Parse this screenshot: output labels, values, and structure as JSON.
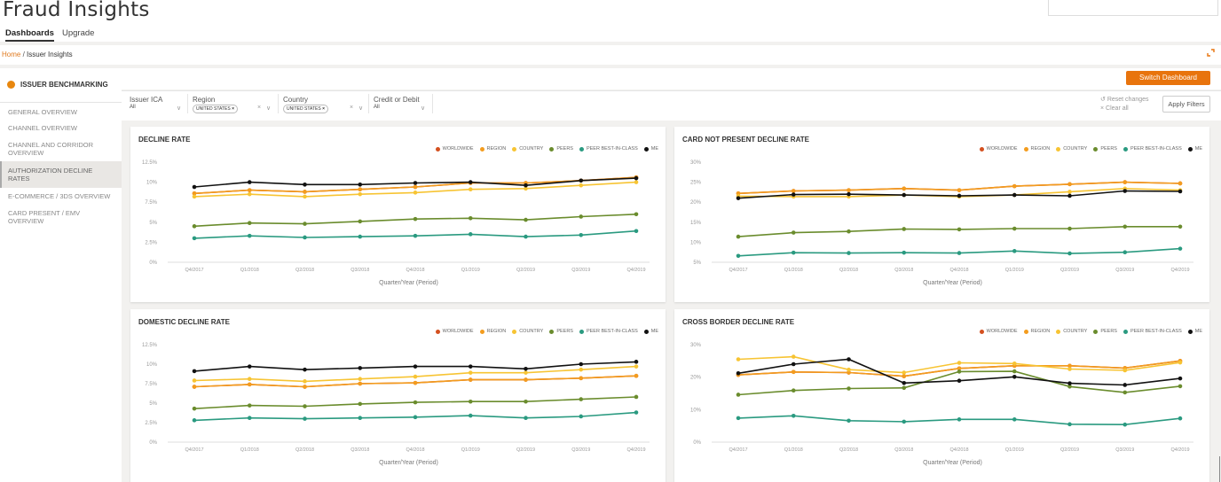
{
  "app": {
    "title": "Fraud Insights"
  },
  "nav": {
    "dashboards": "Dashboards",
    "upgrade": "Upgrade"
  },
  "breadcrumb": {
    "home": "Home",
    "sep": " / ",
    "current": "Issuer Insights"
  },
  "sidebar": {
    "header": "ISSUER BENCHMARKING",
    "items": [
      "GENERAL OVERVIEW",
      "CHANNEL OVERVIEW",
      "CHANNEL AND CORRIDOR OVERVIEW",
      "AUTHORIZATION DECLINE RATES",
      "E-COMMERCE / 3DS OVERVIEW",
      "CARD PRESENT / EMV OVERVIEW"
    ]
  },
  "toolbar": {
    "switch": "Switch Dashboard",
    "reset": "Reset changes",
    "clear": "Clear all",
    "apply": "Apply Filters"
  },
  "filters": {
    "issuer": {
      "label": "Issuer ICA",
      "value": "All"
    },
    "region": {
      "label": "Region",
      "chip": "UNITED STATES"
    },
    "country": {
      "label": "Country",
      "chip": "UNITED STATES"
    },
    "credit": {
      "label": "Credit or Debit",
      "value": "All"
    }
  },
  "colors": {
    "WORLDWIDE": "#d4501f",
    "REGION": "#f39c1e",
    "COUNTRY": "#f7c433",
    "PEERS": "#6a8c2d",
    "PEER BEST-IN-CLASS": "#2a9a80",
    "ME": "#111111",
    "accent": "#e8740d"
  },
  "chart_data": [
    {
      "type": "line",
      "title": "DECLINE RATE",
      "xlabel": "Quarter/Year (Period)",
      "x": [
        "Q4/2017",
        "Q1/2018",
        "Q2/2018",
        "Q3/2018",
        "Q4/2018",
        "Q1/2019",
        "Q2/2019",
        "Q3/2019",
        "Q4/2019"
      ],
      "yticks": [
        "0%",
        "2.5%",
        "5%",
        "7.5%",
        "10%",
        "12.5%"
      ],
      "ylim": [
        0,
        12.5
      ],
      "series": [
        {
          "name": "WORLDWIDE",
          "values": [
            8.6,
            9.0,
            8.8,
            9.1,
            9.4,
            9.9,
            9.9,
            10.2,
            10.6
          ]
        },
        {
          "name": "REGION",
          "values": [
            8.6,
            9.0,
            8.8,
            9.1,
            9.4,
            9.9,
            9.9,
            10.2,
            10.6
          ]
        },
        {
          "name": "COUNTRY",
          "values": [
            8.2,
            8.5,
            8.2,
            8.5,
            8.7,
            9.1,
            9.2,
            9.6,
            10.0
          ]
        },
        {
          "name": "PEERS",
          "values": [
            4.5,
            4.9,
            4.8,
            5.1,
            5.4,
            5.5,
            5.3,
            5.7,
            6.0
          ]
        },
        {
          "name": "PEER BEST-IN-CLASS",
          "values": [
            3.0,
            3.3,
            3.1,
            3.2,
            3.3,
            3.5,
            3.2,
            3.4,
            3.9
          ]
        },
        {
          "name": "ME",
          "values": [
            9.4,
            10.0,
            9.7,
            9.7,
            9.9,
            10.0,
            9.6,
            10.2,
            10.5
          ]
        }
      ]
    },
    {
      "type": "line",
      "title": "CARD NOT PRESENT DECLINE RATE",
      "xlabel": "Quarter/Year (Period)",
      "x": [
        "Q4/2017",
        "Q1/2018",
        "Q2/2018",
        "Q3/2018",
        "Q4/2018",
        "Q1/2019",
        "Q2/2019",
        "Q3/2019",
        "Q4/2019"
      ],
      "yticks": [
        "5%",
        "10%",
        "15%",
        "20%",
        "25%",
        "30%"
      ],
      "ylim": [
        5,
        30
      ],
      "series": [
        {
          "name": "WORLDWIDE",
          "values": [
            22.2,
            22.8,
            23.0,
            23.4,
            23.0,
            24.0,
            24.5,
            25.0,
            24.7
          ]
        },
        {
          "name": "REGION",
          "values": [
            22.2,
            22.8,
            23.0,
            23.4,
            23.0,
            24.0,
            24.5,
            25.0,
            24.7
          ]
        },
        {
          "name": "COUNTRY",
          "values": [
            21.5,
            21.4,
            21.4,
            21.8,
            21.4,
            21.8,
            22.6,
            23.4,
            23.0
          ]
        },
        {
          "name": "PEERS",
          "values": [
            11.4,
            12.4,
            12.7,
            13.3,
            13.2,
            13.4,
            13.4,
            13.9,
            13.9
          ]
        },
        {
          "name": "PEER BEST-IN-CLASS",
          "values": [
            6.6,
            7.4,
            7.3,
            7.4,
            7.3,
            7.8,
            7.2,
            7.5,
            8.4
          ]
        },
        {
          "name": "ME",
          "values": [
            21.0,
            21.9,
            22.0,
            21.8,
            21.6,
            21.8,
            21.6,
            22.8,
            22.7
          ]
        }
      ]
    },
    {
      "type": "line",
      "title": "DOMESTIC DECLINE RATE",
      "xlabel": "Quarter/Year (Period)",
      "x": [
        "Q4/2017",
        "Q1/2018",
        "Q2/2018",
        "Q3/2018",
        "Q4/2018",
        "Q1/2019",
        "Q2/2019",
        "Q3/2019",
        "Q4/2019"
      ],
      "yticks": [
        "0%",
        "2.5%",
        "5%",
        "7.5%",
        "10%",
        "12.5%"
      ],
      "ylim": [
        0,
        12.5
      ],
      "series": [
        {
          "name": "WORLDWIDE",
          "values": [
            7.1,
            7.4,
            7.1,
            7.5,
            7.6,
            8.0,
            8.0,
            8.2,
            8.5
          ]
        },
        {
          "name": "REGION",
          "values": [
            7.1,
            7.4,
            7.1,
            7.5,
            7.6,
            8.0,
            8.0,
            8.2,
            8.5
          ]
        },
        {
          "name": "COUNTRY",
          "values": [
            7.9,
            8.1,
            7.8,
            8.1,
            8.4,
            8.9,
            8.9,
            9.3,
            9.7
          ]
        },
        {
          "name": "PEERS",
          "values": [
            4.3,
            4.7,
            4.6,
            4.9,
            5.1,
            5.2,
            5.2,
            5.5,
            5.8
          ]
        },
        {
          "name": "PEER BEST-IN-CLASS",
          "values": [
            2.8,
            3.1,
            3.0,
            3.1,
            3.2,
            3.4,
            3.1,
            3.3,
            3.8
          ]
        },
        {
          "name": "ME",
          "values": [
            9.1,
            9.7,
            9.3,
            9.5,
            9.7,
            9.7,
            9.4,
            10.0,
            10.3
          ]
        }
      ]
    },
    {
      "type": "line",
      "title": "CROSS BORDER DECLINE RATE",
      "xlabel": "Quarter/Year (Period)",
      "x": [
        "Q4/2017",
        "Q1/2018",
        "Q2/2018",
        "Q3/2018",
        "Q4/2018",
        "Q1/2019",
        "Q2/2019",
        "Q3/2019",
        "Q4/2019"
      ],
      "yticks": [
        "0%",
        "10%",
        "20%",
        "30%"
      ],
      "ylim": [
        0,
        30
      ],
      "series": [
        {
          "name": "WORLDWIDE",
          "values": [
            20.7,
            21.6,
            21.4,
            20.3,
            22.7,
            23.5,
            23.5,
            22.8,
            25.0
          ]
        },
        {
          "name": "REGION",
          "values": [
            20.7,
            21.6,
            21.4,
            20.3,
            22.7,
            23.5,
            23.5,
            22.8,
            25.0
          ]
        },
        {
          "name": "COUNTRY",
          "values": [
            25.5,
            26.3,
            22.3,
            21.4,
            24.4,
            24.2,
            22.5,
            22.1,
            24.5
          ]
        },
        {
          "name": "PEERS",
          "values": [
            14.6,
            15.9,
            16.5,
            16.7,
            21.7,
            21.8,
            17.1,
            15.3,
            17.2
          ]
        },
        {
          "name": "PEER BEST-IN-CLASS",
          "values": [
            7.4,
            8.1,
            6.6,
            6.3,
            7.0,
            7.0,
            5.5,
            5.4,
            7.3
          ]
        },
        {
          "name": "ME",
          "values": [
            21.2,
            24.0,
            25.5,
            18.2,
            18.9,
            20.1,
            18.1,
            17.6,
            19.6
          ]
        }
      ]
    }
  ]
}
